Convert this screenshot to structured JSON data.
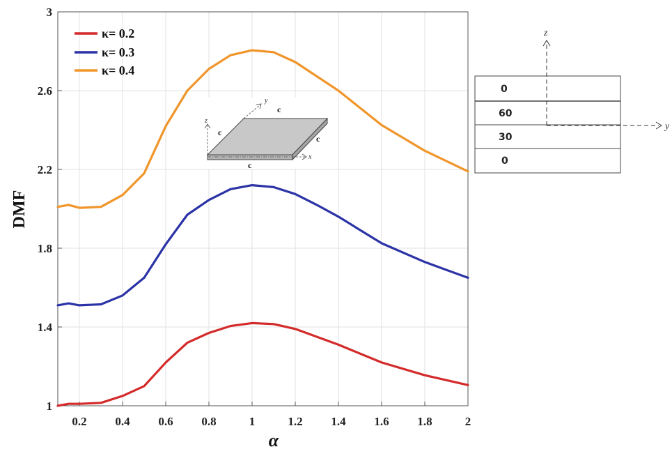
{
  "chart_data": {
    "type": "line",
    "xlabel": "α",
    "ylabel": "DMF",
    "xlim": [
      0.1,
      2
    ],
    "ylim": [
      1,
      3
    ],
    "xticks": [
      "0.2",
      "0.4",
      "0.6",
      "0.8",
      "1",
      "1.2",
      "1.4",
      "1.6",
      "1.8",
      "2"
    ],
    "yticks": [
      "1",
      "1.4",
      "1.8",
      "2.2",
      "2.6",
      "3"
    ],
    "grid": true,
    "legend_position": "top-left",
    "series": [
      {
        "name": "κ= 0.2",
        "color": "#d42a2a",
        "x": [
          0.1,
          0.15,
          0.2,
          0.3,
          0.4,
          0.5,
          0.6,
          0.7,
          0.8,
          0.9,
          1.0,
          1.1,
          1.2,
          1.4,
          1.6,
          1.8,
          2.0
        ],
        "y": [
          1.0,
          1.01,
          1.01,
          1.015,
          1.05,
          1.1,
          1.22,
          1.32,
          1.37,
          1.405,
          1.42,
          1.415,
          1.39,
          1.31,
          1.22,
          1.155,
          1.105
        ]
      },
      {
        "name": "κ= 0.3",
        "color": "#2b33a6",
        "x": [
          0.1,
          0.15,
          0.2,
          0.3,
          0.4,
          0.5,
          0.6,
          0.7,
          0.8,
          0.9,
          1.0,
          1.1,
          1.2,
          1.3,
          1.4,
          1.6,
          1.8,
          2.0
        ],
        "y": [
          1.51,
          1.52,
          1.51,
          1.515,
          1.56,
          1.65,
          1.82,
          1.97,
          2.045,
          2.1,
          2.12,
          2.11,
          2.075,
          2.02,
          1.96,
          1.825,
          1.73,
          1.65
        ]
      },
      {
        "name": "κ= 0.4",
        "color": "#f0952a",
        "x": [
          0.1,
          0.15,
          0.2,
          0.3,
          0.4,
          0.5,
          0.6,
          0.7,
          0.8,
          0.9,
          1.0,
          1.1,
          1.2,
          1.4,
          1.6,
          1.8,
          2.0
        ],
        "y": [
          2.01,
          2.02,
          2.005,
          2.01,
          2.07,
          2.18,
          2.42,
          2.6,
          2.71,
          2.78,
          2.805,
          2.795,
          2.745,
          2.6,
          2.425,
          2.295,
          2.19
        ]
      }
    ],
    "inset_plate": {
      "edge_labels": [
        "c",
        "c",
        "c",
        "c"
      ],
      "axis_labels": [
        "y",
        "z",
        "x"
      ]
    },
    "layup": {
      "layers": [
        "0",
        "60",
        "30",
        "0"
      ],
      "axis_labels": [
        "z",
        "y"
      ]
    }
  }
}
